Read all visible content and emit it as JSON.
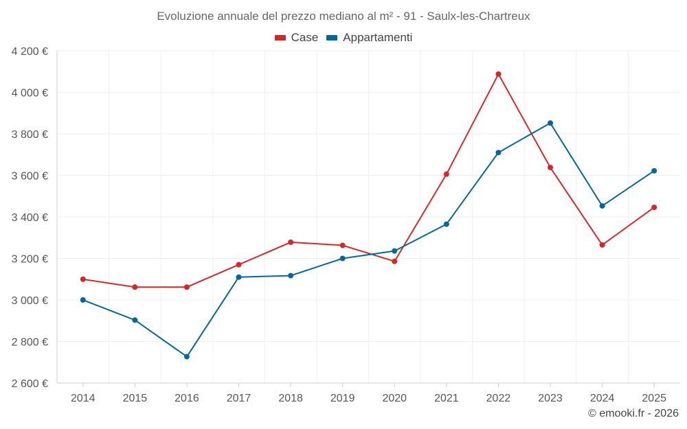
{
  "chart_data": {
    "type": "line",
    "title": "Evoluzione annuale del prezzo mediano al m² - 91 - Saulx-les-Chartreux",
    "categories": [
      "2014",
      "2015",
      "2016",
      "2017",
      "2018",
      "2019",
      "2020",
      "2021",
      "2022",
      "2023",
      "2024",
      "2025"
    ],
    "series": [
      {
        "name": "Case",
        "color": "#d62728",
        "values": [
          3100,
          3062,
          3062,
          3170,
          3278,
          3263,
          3186,
          3606,
          4088,
          3638,
          3265,
          3446
        ]
      },
      {
        "name": "Appartamenti",
        "color": "#05669b",
        "values": [
          3000,
          2903,
          2727,
          3110,
          3117,
          3200,
          3236,
          3365,
          3710,
          3852,
          3453,
          3622
        ]
      }
    ],
    "ylim": [
      2600,
      4200
    ],
    "yticks": [
      2600,
      2800,
      3000,
      3200,
      3400,
      3600,
      3800,
      4000,
      4200
    ],
    "ytick_labels": [
      "2 600 €",
      "2 800 €",
      "3 000 €",
      "3 200 €",
      "3 400 €",
      "3 600 €",
      "3 800 €",
      "4 000 €",
      "4 200 €"
    ],
    "xlabel": "",
    "ylabel": "",
    "grid": true,
    "legend_position": "top-center"
  },
  "credit": "© emooki.fr - 2026"
}
